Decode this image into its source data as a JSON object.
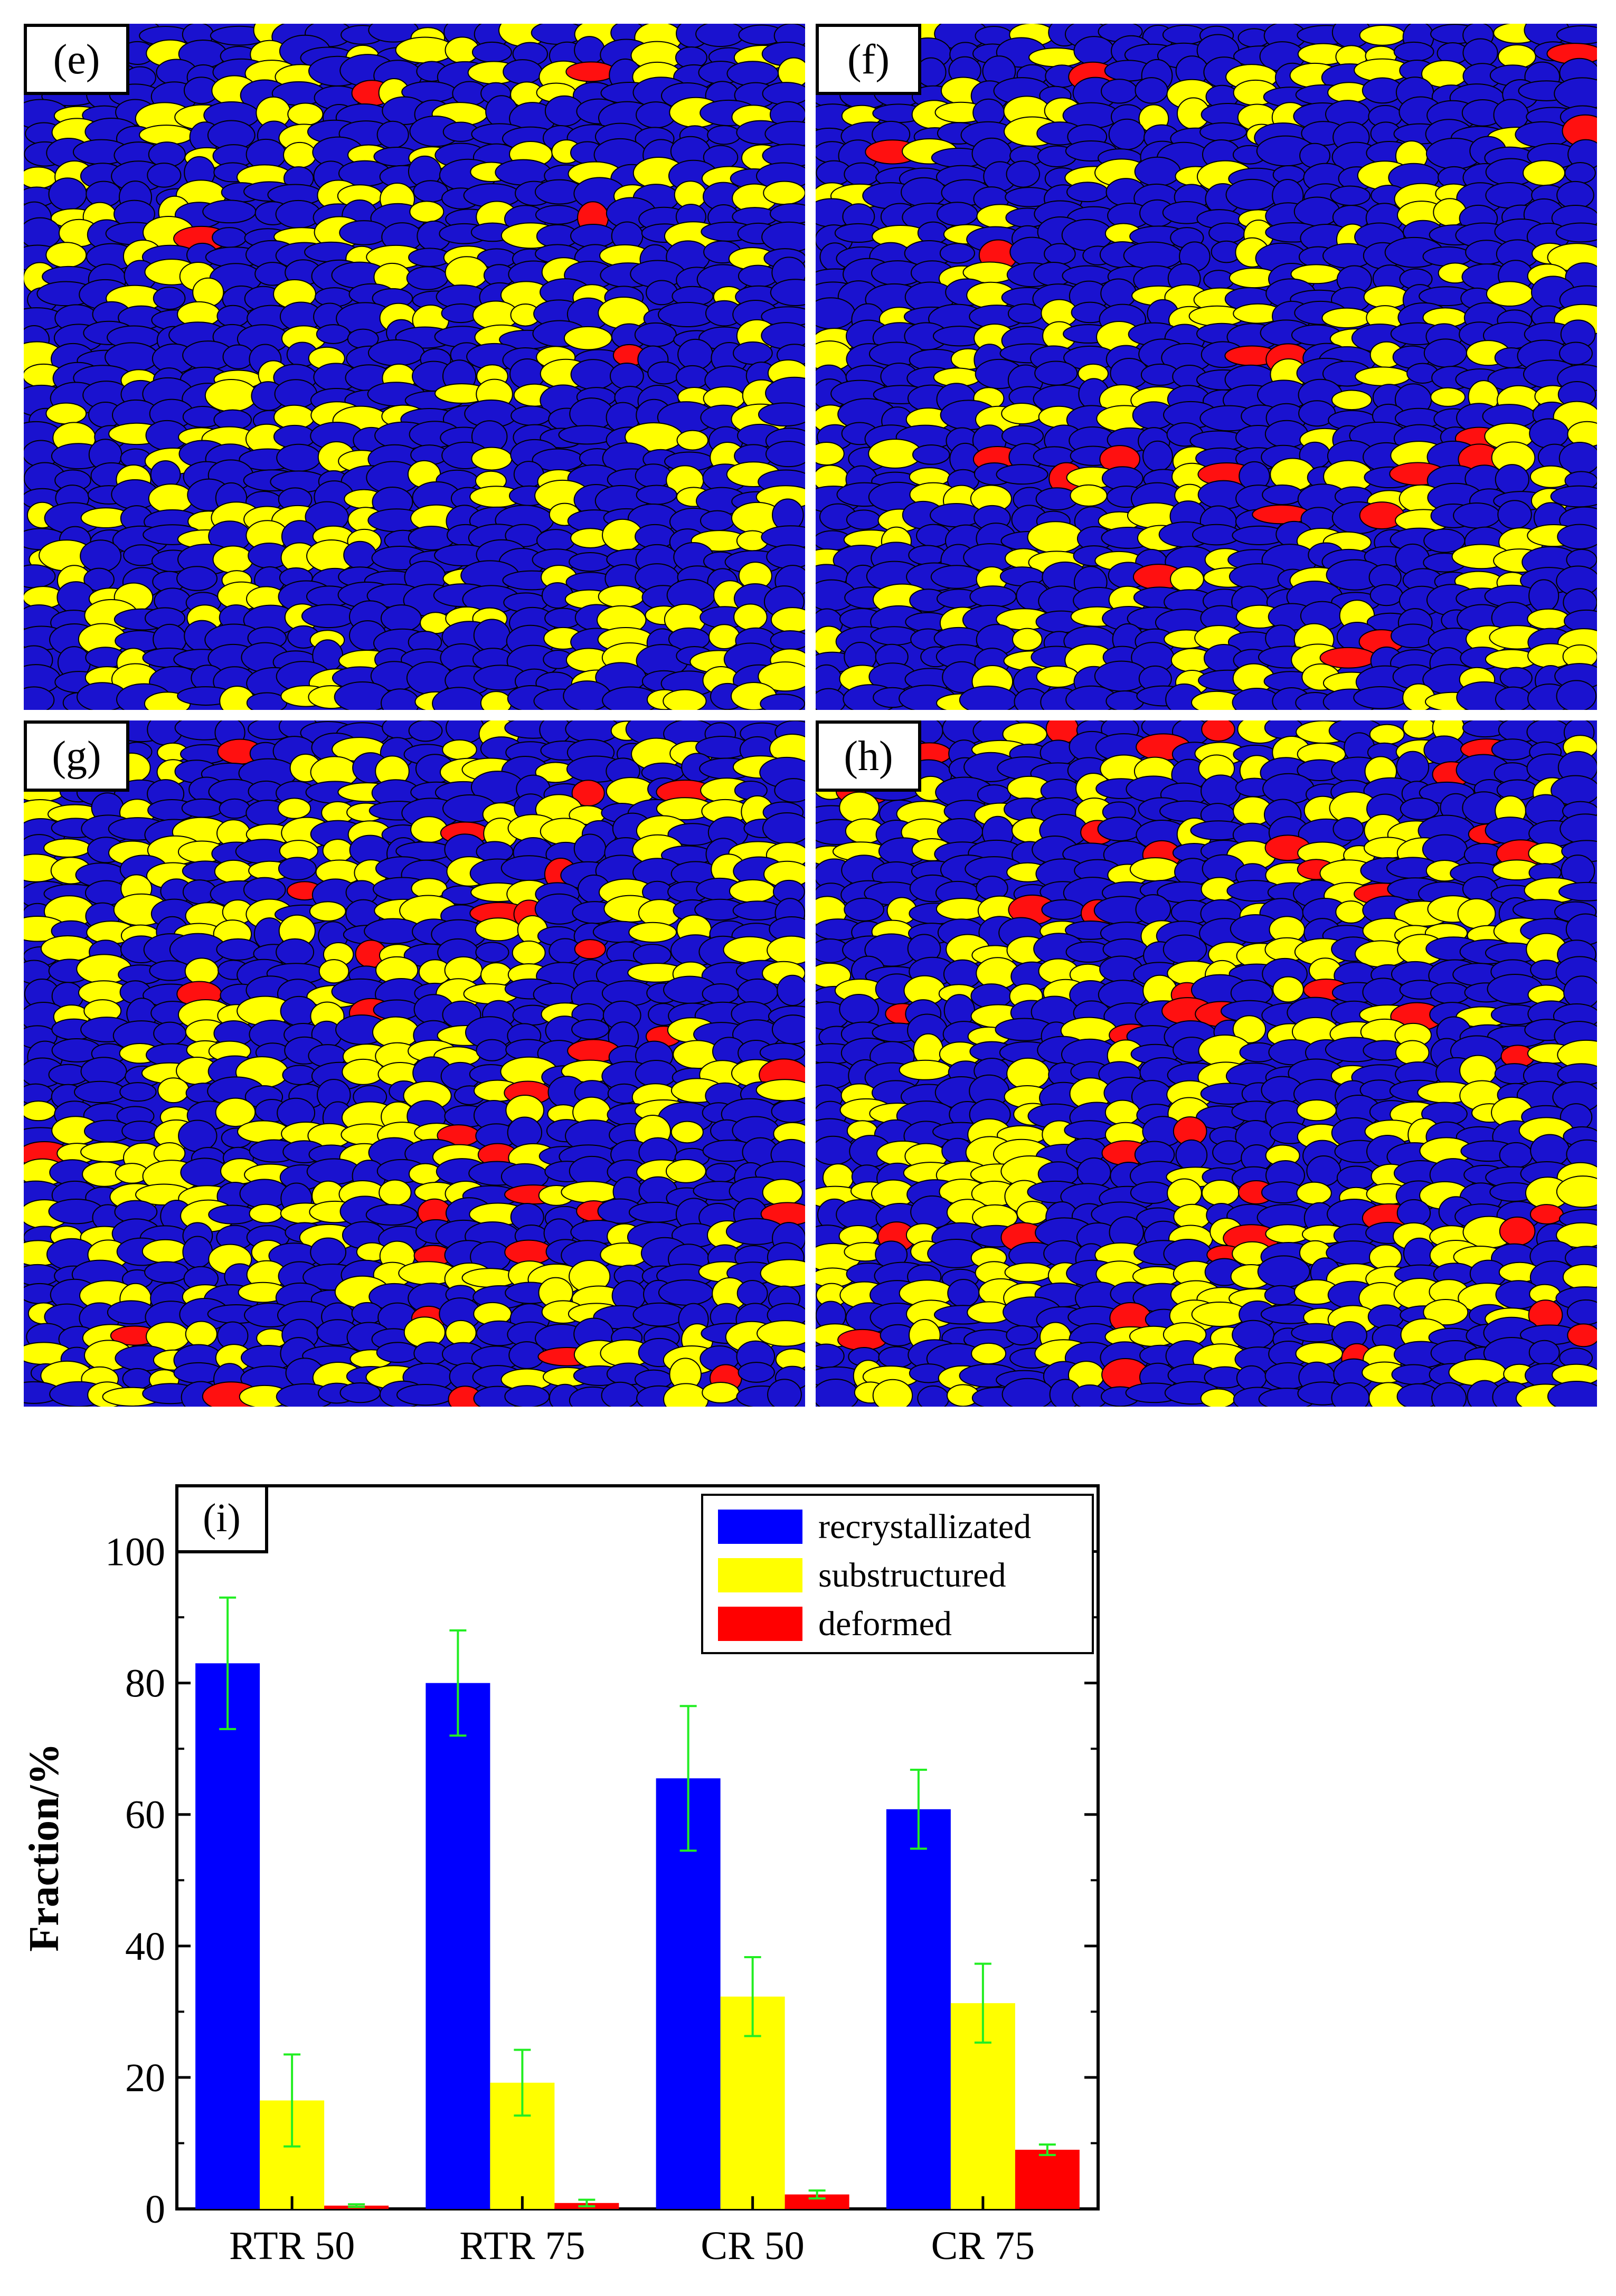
{
  "panels": [
    {
      "label": "(e)",
      "seed": 11,
      "yellow": 0.28,
      "red": 0.01
    },
    {
      "label": "(f)",
      "seed": 23,
      "yellow": 0.22,
      "red": 0.015
    },
    {
      "label": "(g)",
      "seed": 37,
      "yellow": 0.32,
      "red": 0.035
    },
    {
      "label": "(h)",
      "seed": 51,
      "yellow": 0.33,
      "red": 0.045
    }
  ],
  "colors": {
    "recrystallized": "#0000ff",
    "substructured": "#ffff00",
    "deformed": "#ff0000",
    "boundary": "#000000",
    "error": "#22ee22"
  },
  "chart_data": {
    "type": "bar",
    "panel_label": "(i)",
    "categories": [
      "RTR 50",
      "RTR 75",
      "CR 50",
      "CR 75"
    ],
    "series": [
      {
        "name": "recrystallizated",
        "values": [
          83,
          80,
          65.5,
          60.8
        ],
        "errors": [
          10,
          8,
          11,
          6
        ]
      },
      {
        "name": "substructured",
        "values": [
          16.5,
          19.2,
          32.3,
          31.3
        ],
        "errors": [
          7,
          5,
          6,
          6
        ]
      },
      {
        "name": "deformed",
        "values": [
          0.5,
          0.9,
          2.2,
          9.0
        ],
        "errors": [
          0.2,
          0.5,
          0.6,
          0.8
        ]
      }
    ],
    "ylabel": "Fraction/%",
    "ylim": [
      0,
      110
    ],
    "yticks": [
      0,
      20,
      40,
      60,
      80,
      100
    ],
    "legend_position": "top-right"
  }
}
